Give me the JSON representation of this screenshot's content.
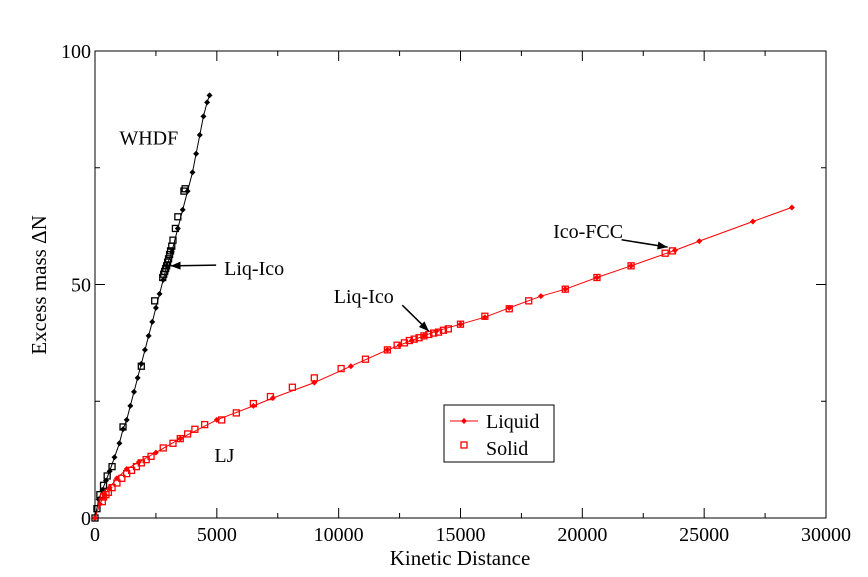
{
  "chart_data": {
    "type": "scatter",
    "title": "",
    "xlabel": "Kinetic Distance",
    "ylabel": "Excess mass ΔN",
    "xlim": [
      0,
      30000
    ],
    "ylim": [
      0,
      100
    ],
    "xticks": [
      0,
      5000,
      10000,
      15000,
      20000,
      25000,
      30000
    ],
    "yticks": [
      0,
      50,
      100
    ],
    "xtick_labels": [
      "0",
      "5000",
      "10000",
      "15000",
      "20000",
      "25000",
      "30000"
    ],
    "ytick_labels": [
      "0",
      "50",
      "100"
    ],
    "grid": false,
    "legend": {
      "placement": "bottom-center",
      "entries": [
        {
          "label": "Liquid",
          "marker": "filled-diamond",
          "line": true,
          "color": "#ff0000"
        },
        {
          "label": "Solid",
          "marker": "open-square",
          "line": false,
          "color": "#ff0000"
        }
      ]
    },
    "annotations": [
      {
        "text": "WHDF",
        "x": 1000,
        "y": 80
      },
      {
        "text": "Liq-Ico",
        "x": 5300,
        "y": 52,
        "arrow_to": [
          3100,
          54
        ]
      },
      {
        "text": "Liq-Ico",
        "x": 9800,
        "y": 46,
        "arrow_to": [
          13700,
          40
        ]
      },
      {
        "text": "Ico-FCC",
        "x": 18800,
        "y": 60,
        "arrow_to": [
          23500,
          58
        ]
      },
      {
        "text": "LJ",
        "x": 4900,
        "y": 12
      }
    ],
    "series": [
      {
        "color": "#000000",
        "line": true,
        "liquid": [
          [
            0,
            0
          ],
          [
            150,
            4
          ],
          [
            300,
            6
          ],
          [
            450,
            8
          ],
          [
            600,
            10
          ],
          [
            800,
            13
          ],
          [
            1000,
            16
          ],
          [
            1150,
            19
          ],
          [
            1300,
            21
          ],
          [
            1450,
            24
          ],
          [
            1600,
            27
          ],
          [
            1750,
            30
          ],
          [
            1900,
            33
          ],
          [
            2050,
            36
          ],
          [
            2200,
            39
          ],
          [
            2350,
            42
          ],
          [
            2500,
            45
          ],
          [
            2650,
            48
          ],
          [
            2800,
            51
          ],
          [
            2950,
            54
          ],
          [
            3150,
            57
          ],
          [
            3400,
            62
          ],
          [
            3600,
            66
          ],
          [
            3800,
            70
          ],
          [
            4000,
            74
          ],
          [
            4150,
            78
          ],
          [
            4300,
            82
          ],
          [
            4450,
            86
          ],
          [
            4600,
            89
          ],
          [
            4700,
            90.5
          ]
        ],
        "solid": [
          [
            0,
            0
          ],
          [
            80,
            2
          ],
          [
            200,
            5
          ],
          [
            350,
            7
          ],
          [
            500,
            9
          ],
          [
            700,
            11
          ],
          [
            1150,
            19.5
          ],
          [
            1900,
            32.5
          ],
          [
            2450,
            46.5
          ],
          [
            2780,
            51.5
          ],
          [
            2820,
            52.2
          ],
          [
            2860,
            52.8
          ],
          [
            2900,
            53.4
          ],
          [
            2940,
            54
          ],
          [
            2980,
            54.8
          ],
          [
            3020,
            55.5
          ],
          [
            3060,
            56.4
          ],
          [
            3100,
            57.2
          ],
          [
            3150,
            58.2
          ],
          [
            3200,
            59.5
          ],
          [
            3300,
            62
          ],
          [
            3400,
            64.5
          ],
          [
            3650,
            70
          ],
          [
            3700,
            70.5
          ]
        ]
      },
      {
        "color": "#ff0000",
        "line": true,
        "liquid": [
          [
            0,
            0
          ],
          [
            200,
            3
          ],
          [
            400,
            5
          ],
          [
            600,
            6.5
          ],
          [
            900,
            8.5
          ],
          [
            1300,
            10.5
          ],
          [
            1800,
            12
          ],
          [
            2500,
            14
          ],
          [
            3500,
            17
          ],
          [
            5000,
            21
          ],
          [
            6500,
            24
          ],
          [
            7300,
            25.7
          ],
          [
            9000,
            29
          ],
          [
            10500,
            32.5
          ],
          [
            12000,
            36
          ],
          [
            12500,
            37
          ],
          [
            13000,
            38
          ],
          [
            13500,
            39
          ],
          [
            14000,
            40
          ],
          [
            15000,
            41.5
          ],
          [
            16000,
            43
          ],
          [
            17000,
            45
          ],
          [
            18300,
            47.5
          ],
          [
            19300,
            49
          ],
          [
            20600,
            51.5
          ],
          [
            22000,
            54
          ],
          [
            23800,
            57.3
          ],
          [
            24800,
            59.3
          ],
          [
            27000,
            63.5
          ],
          [
            28600,
            66.5
          ]
        ],
        "solid": [
          [
            300,
            3.5
          ],
          [
            350,
            4.5
          ],
          [
            450,
            5
          ],
          [
            550,
            5.5
          ],
          [
            700,
            6.5
          ],
          [
            900,
            7.5
          ],
          [
            1100,
            8.5
          ],
          [
            1300,
            9.5
          ],
          [
            1500,
            10.2
          ],
          [
            1700,
            11
          ],
          [
            1900,
            11.8
          ],
          [
            2100,
            12.5
          ],
          [
            2300,
            13.2
          ],
          [
            2800,
            15
          ],
          [
            3200,
            16
          ],
          [
            3500,
            17
          ],
          [
            3800,
            18
          ],
          [
            4100,
            19
          ],
          [
            4500,
            20
          ],
          [
            5200,
            21
          ],
          [
            5800,
            22.5
          ],
          [
            6500,
            24.5
          ],
          [
            7200,
            26
          ],
          [
            8100,
            28
          ],
          [
            9000,
            30
          ],
          [
            10100,
            32
          ],
          [
            11100,
            34
          ],
          [
            12000,
            36
          ],
          [
            12400,
            37
          ],
          [
            12700,
            37.5
          ],
          [
            12900,
            38
          ],
          [
            13100,
            38.3
          ],
          [
            13300,
            38.6
          ],
          [
            13500,
            39
          ],
          [
            13700,
            39.3
          ],
          [
            13900,
            39.6
          ],
          [
            14100,
            39.8
          ],
          [
            14300,
            40.2
          ],
          [
            14500,
            40.5
          ],
          [
            15000,
            41.5
          ],
          [
            16000,
            43.2
          ],
          [
            17000,
            44.8
          ],
          [
            17800,
            46.5
          ],
          [
            19300,
            49
          ],
          [
            20600,
            51.5
          ],
          [
            22000,
            54
          ],
          [
            23400,
            56.7
          ],
          [
            23700,
            57.2
          ]
        ]
      }
    ]
  }
}
